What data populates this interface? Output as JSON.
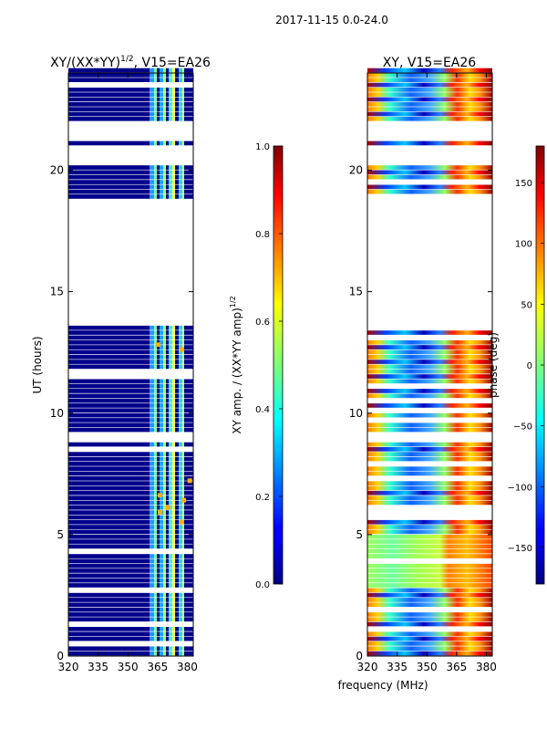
{
  "suptitle": "2017-11-15 0.0-24.0",
  "chart_data": [
    {
      "type": "heatmap",
      "title": "XY/(XX*YY)^1/2, V15=EA26",
      "title_main": "XY/(XX*YY)",
      "title_exp": "1/2",
      "title_suffix": ", V15=EA26",
      "xlabel": "",
      "ylabel": "UT (hours)",
      "xlim": [
        320,
        383
      ],
      "ylim": [
        0,
        24
      ],
      "xticks": [
        320,
        335,
        350,
        365,
        380
      ],
      "yticks": [
        0,
        5,
        10,
        15,
        20
      ],
      "data_gaps_hours": [
        [
          8.9,
          9.1
        ],
        [
          13.5,
          18.8
        ],
        [
          20.1,
          21.0
        ],
        [
          21.2,
          22.0
        ]
      ],
      "bright_channel_bands_mhz": [
        [
          364,
          366
        ],
        [
          369,
          371
        ],
        [
          376,
          378
        ],
        [
          380,
          382
        ]
      ],
      "colorbar": {
        "label": "XY amp. / (XX*YY amp)^1/2",
        "label_main": "XY amp. / (XX*YY amp)",
        "label_exp": "1/2",
        "range": [
          0.0,
          1.0
        ],
        "ticks": [
          "0.0",
          "0.2",
          "0.4",
          "0.6",
          "0.8",
          "1.0"
        ]
      }
    },
    {
      "type": "heatmap",
      "title": "XY, V15=EA26",
      "xlabel": "frequency (MHz)",
      "ylabel": "",
      "xlim": [
        320,
        383
      ],
      "ylim": [
        0,
        24
      ],
      "xticks": [
        320,
        335,
        350,
        365,
        380
      ],
      "yticks": [
        0,
        5,
        10,
        15,
        20
      ],
      "colorbar": {
        "label": "phase (deg)",
        "range": [
          -180,
          180
        ],
        "ticks": [
          "−150",
          "−100",
          "−50",
          "0",
          "50",
          "100",
          "150"
        ]
      }
    }
  ],
  "colors": {
    "jet_low": "#00007f",
    "jet_mid": "#7dff7a",
    "jet_high": "#7f0000"
  }
}
